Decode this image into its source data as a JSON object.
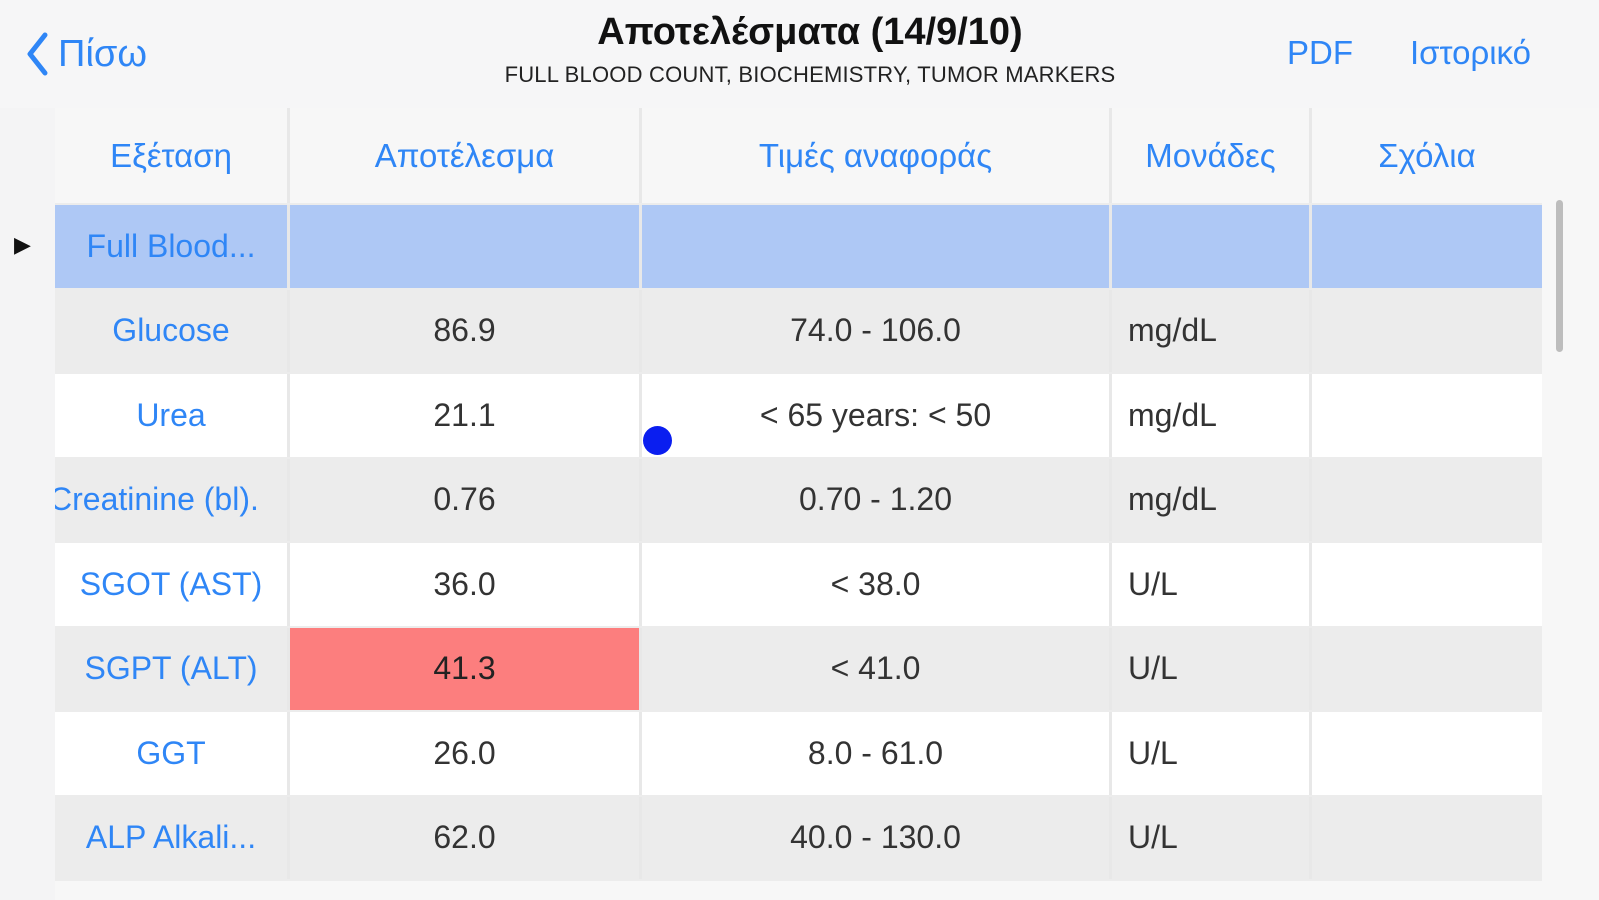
{
  "navbar": {
    "back_label": "Πίσω",
    "title": "Αποτελέσματα (14/9/10)",
    "subtitle": "FULL BLOOD COUNT, BIOCHEMISTRY, TUMOR MARKERS",
    "pdf_label": "PDF",
    "history_label": "Ιστορικό"
  },
  "table": {
    "headers": [
      "Εξέταση",
      "Αποτέλεσμα",
      "Τιμές αναφοράς",
      "Μονάδες",
      "Σχόλια"
    ],
    "rows": [
      {
        "test": "Full Blood...",
        "result": "",
        "reference": "",
        "units": "",
        "comments": "",
        "selected": true
      },
      {
        "test": "Glucose",
        "result": "86.9",
        "reference": "74.0 - 106.0",
        "units": "mg/dL",
        "comments": ""
      },
      {
        "test": "Urea",
        "result": "21.1",
        "reference": "< 65 years: < 50",
        "units": "mg/dL",
        "comments": ""
      },
      {
        "test": "Creatinine (bl).",
        "result": "0.76",
        "reference": "0.70 - 1.20",
        "units": "mg/dL",
        "comments": ""
      },
      {
        "test": "SGOT (AST)",
        "result": "36.0",
        "reference": "< 38.0",
        "units": "U/L",
        "comments": ""
      },
      {
        "test": "SGPT (ALT)",
        "result": "41.3",
        "reference": "< 41.0",
        "units": "U/L",
        "comments": "",
        "abnormal": true
      },
      {
        "test": "GGT",
        "result": "26.0",
        "reference": "8.0 - 61.0",
        "units": "U/L",
        "comments": ""
      },
      {
        "test": "ALP Alkali...",
        "result": "62.0",
        "reference": "40.0 - 130.0",
        "units": "U/L",
        "comments": ""
      }
    ]
  },
  "colors": {
    "accent": "#2f86f6",
    "selected_row": "#aec8f5",
    "abnormal_result": "#fc7e7e"
  },
  "icons": {
    "back": "chevron-left-icon",
    "row_indicator": "triangle-right-icon"
  }
}
